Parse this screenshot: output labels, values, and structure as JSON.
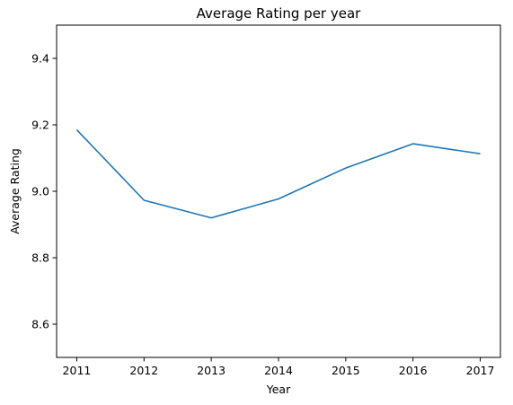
{
  "chart_data": {
    "type": "line",
    "title": "Average Rating per year",
    "xlabel": "Year",
    "ylabel": "Average Rating",
    "ylim": [
      8.5,
      9.5
    ],
    "xlim": [
      2010.7,
      2017.3
    ],
    "grid": false,
    "legend": "none",
    "x": [
      2011,
      2012,
      2013,
      2014,
      2015,
      2016,
      2017
    ],
    "x_tick_labels": [
      "2011",
      "2012",
      "2013",
      "2014",
      "2015",
      "2016",
      "2017"
    ],
    "y_ticks": [
      8.6,
      8.8,
      9.0,
      9.2,
      9.4
    ],
    "y_tick_labels": [
      "8.6",
      "8.8",
      "9.0",
      "9.2",
      "9.4"
    ],
    "series": [
      {
        "name": "Average Rating",
        "color": "#1f77b4",
        "values": [
          9.185,
          8.973,
          8.92,
          8.977,
          9.07,
          9.143,
          9.113
        ]
      }
    ]
  }
}
